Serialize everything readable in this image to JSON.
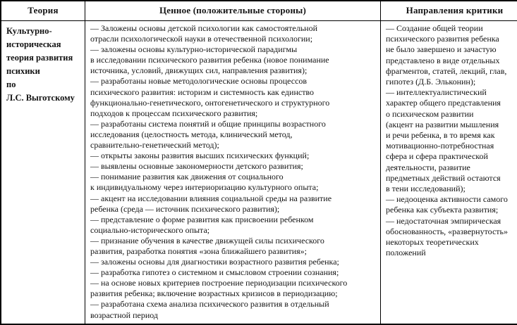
{
  "colors": {
    "border": "#000000",
    "text": "#141414",
    "background": "#ffffff"
  },
  "table": {
    "headers": {
      "theory": "Теория",
      "valuable": "Ценное (положительные стороны)",
      "criticism": "Направления критики"
    },
    "row": {
      "theory_name": "Культурно-\nисторическая\nтеория развития\nпсихики\nпо\nЛ.С. Выготскому",
      "valuable_points": [
        "— Заложены основы детской психологии как самостоятельной\nотрасли психологической науки в отечественной психологии;",
        "— заложены основы культурно-исторической парадигмы\nв исследовании психического развития ребенка (новое понимание\nисточника, условий, движущих сил, направления развития);",
        "— разработаны новые методологические основы процессов\nпсихического развития: историзм и системность как единство\nфункционально-генетического, онтогенетического и структурного\nподходов к процессам психического развития;",
        "— разработаны система понятий и общие принципы возрастного\nисследования (целостность метода, клинический метод,\nсравнительно-генетический метод);",
        "— открыты законы развития высших психических функций;",
        "— выявлены основные закономерности детского развития;",
        "— понимание развития как движения от социального\nк индивидуальному через интериоризацию культурного опыта;",
        "— акцент на исследовании влияния социальной среды на развитие\nребенка (среда — источник психического развития);",
        "— представление о форме развития как присвоении ребенком\nсоциально-исторического опыта;",
        "— признание обучения в качестве движущей силы психического\nразвития, разработка понятия «зона ближайшего развития»;",
        "— заложены основы для диагностики возрастного развития ребенка;",
        "— разработка гипотез о системном и смысловом строении сознания;",
        "— на основе новых критериев построение периодизации психического\nразвития ребенка; включение возрастных кризисов в периодизацию;",
        "— разработана схема анализа психического развития в отдельный\nвозрастной период"
      ],
      "criticism_points": [
        "— Создание общей теории\nпсихического развития ребенка\nне было завершено и зачастую\nпредставлено в виде отдельных\nфрагментов, статей, лекций, глав,\nгипотез (Д.Б. Эльконин);",
        "— интеллектуалистический\nхарактер общего представления\nо психическом развитии\n(акцент на развитии мышления\nи речи ребенка, в то время как\nмотивационно-потребностная\nсфера и сфера практической\nдеятельности, развитие\nпредметных действий остаются\nв тени исследований);",
        "— недооценка активности самого\nребенка как субъекта развития;",
        "— недостаточная эмпирическая\nобоснованность, «развернутость»\nнекоторых теоретических\nположений"
      ]
    }
  }
}
